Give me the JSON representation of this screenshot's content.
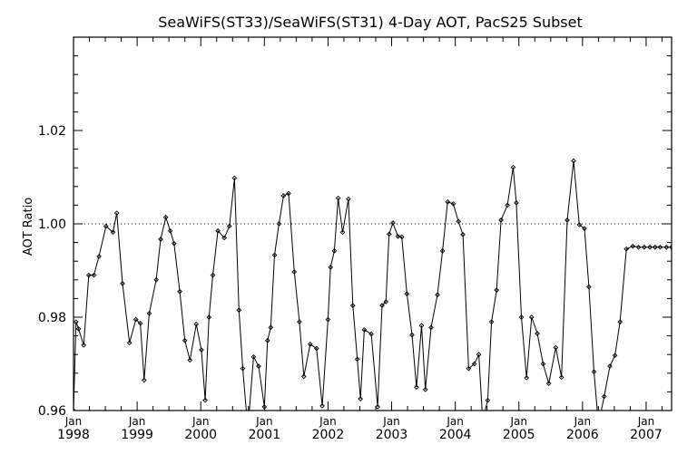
{
  "chart_data": {
    "type": "line",
    "title": "SeaWiFS(ST33)/SeaWiFS(ST31) 4-Day AOT, PacS25 Subset",
    "xlabel": "",
    "ylabel": "AOT Ratio",
    "xlim": [
      1998.0,
      2007.4
    ],
    "ylim": [
      0.96,
      1.04
    ],
    "y_ticks": [
      0.96,
      0.98,
      1.0,
      1.02
    ],
    "y_tick_labels": [
      "0.96",
      "0.98",
      "1.00",
      "1.02"
    ],
    "x_ticks": [
      {
        "x": 1998,
        "month": "Jan",
        "year": "1998"
      },
      {
        "x": 1999,
        "month": "Jan",
        "year": "1999"
      },
      {
        "x": 2000,
        "month": "Jan",
        "year": "2000"
      },
      {
        "x": 2001,
        "month": "Jan",
        "year": "2001"
      },
      {
        "x": 2002,
        "month": "Jan",
        "year": "2002"
      },
      {
        "x": 2003,
        "month": "Jan",
        "year": "2003"
      },
      {
        "x": 2004,
        "month": "Jan",
        "year": "2004"
      },
      {
        "x": 2005,
        "month": "Jan",
        "year": "2005"
      },
      {
        "x": 2006,
        "month": "Jan",
        "year": "2006"
      },
      {
        "x": 2007,
        "month": "Jan",
        "year": "2007"
      }
    ],
    "reference_line": {
      "y": 1.0,
      "style": "dotted"
    },
    "line_color": "#000000",
    "marker": "diamond",
    "series": [
      {
        "x": [
          1998.0,
          1998.04,
          1998.08,
          1998.16,
          1998.24,
          1998.32,
          1998.4,
          1998.51,
          1998.62,
          1998.68,
          1998.77,
          1998.88,
          1998.98,
          1999.05,
          1999.11,
          1999.19,
          1999.3,
          1999.37,
          1999.45,
          1999.52,
          1999.58,
          1999.67,
          1999.75,
          1999.83,
          1999.93,
          2000.01,
          2000.07,
          2000.13,
          2000.19,
          2000.27,
          2000.37,
          2000.45,
          2000.53,
          2000.6,
          2000.66,
          2000.74,
          2000.83,
          2000.91,
          2001.0,
          2001.05,
          2001.1,
          2001.16,
          2001.23,
          2001.3,
          2001.38,
          2001.47,
          2001.55,
          2001.62,
          2001.72,
          2001.82,
          2001.91,
          2002.0,
          2002.04,
          2002.1,
          2002.16,
          2002.23,
          2002.32,
          2002.39,
          2002.46,
          2002.51,
          2002.57,
          2002.68,
          2002.78,
          2002.85,
          2002.91,
          2002.96,
          2003.02,
          2003.1,
          2003.16,
          2003.24,
          2003.32,
          2003.39,
          2003.47,
          2003.53,
          2003.62,
          2003.72,
          2003.8,
          2003.88,
          2003.97,
          2004.05,
          2004.12,
          2004.21,
          2004.3,
          2004.37,
          2004.43,
          2004.51,
          2004.57,
          2004.65,
          2004.72,
          2004.82,
          2004.91,
          2004.96,
          2005.04,
          2005.12,
          2005.2,
          2005.29,
          2005.38,
          2005.47,
          2005.58,
          2005.67,
          2005.76,
          2005.86,
          2005.95,
          2006.03,
          2006.1,
          2006.18,
          2006.25,
          2006.34,
          2006.43,
          2006.51,
          2006.59,
          2006.69,
          2006.79,
          2006.88,
          2006.97,
          2007.06,
          2007.14,
          2007.22,
          2007.32,
          2007.4
        ],
        "y": [
          0.96,
          0.979,
          0.9775,
          0.974,
          0.989,
          0.989,
          0.993,
          0.9995,
          0.9982,
          1.0023,
          0.9872,
          0.9745,
          0.9795,
          0.9787,
          0.9665,
          0.9808,
          0.988,
          0.9967,
          1.0014,
          0.9985,
          0.9958,
          0.9855,
          0.975,
          0.9708,
          0.9785,
          0.973,
          0.9622,
          0.98,
          0.989,
          0.9985,
          0.997,
          0.9995,
          1.0098,
          0.9815,
          0.969,
          0.956,
          0.9715,
          0.9695,
          0.9608,
          0.975,
          0.9778,
          0.9933,
          1.0,
          1.006,
          1.0065,
          0.9897,
          0.979,
          0.9673,
          0.9742,
          0.9733,
          0.961,
          0.9795,
          0.9907,
          0.9942,
          1.0055,
          0.9982,
          1.0053,
          0.9825,
          0.971,
          0.9625,
          0.9773,
          0.9764,
          0.9608,
          0.9825,
          0.9833,
          0.9978,
          1.0002,
          0.9973,
          0.9972,
          0.985,
          0.9762,
          0.965,
          0.9782,
          0.9645,
          0.9778,
          0.9848,
          0.9942,
          1.0047,
          1.0043,
          1.0005,
          0.9977,
          0.969,
          0.97,
          0.972,
          0.958,
          0.9622,
          0.979,
          0.9858,
          1.0008,
          1.004,
          1.0121,
          1.0045,
          0.98,
          0.967,
          0.98,
          0.9765,
          0.97,
          0.9658,
          0.9735,
          0.9671,
          1.0008,
          1.0135,
          0.9998,
          0.999,
          0.9865,
          0.9683,
          0.957,
          0.963,
          0.9695,
          0.9718,
          0.979,
          0.9946,
          0.9952,
          0.995,
          0.995,
          0.995,
          0.995,
          0.995,
          0.995,
          0.995
        ]
      }
    ]
  }
}
